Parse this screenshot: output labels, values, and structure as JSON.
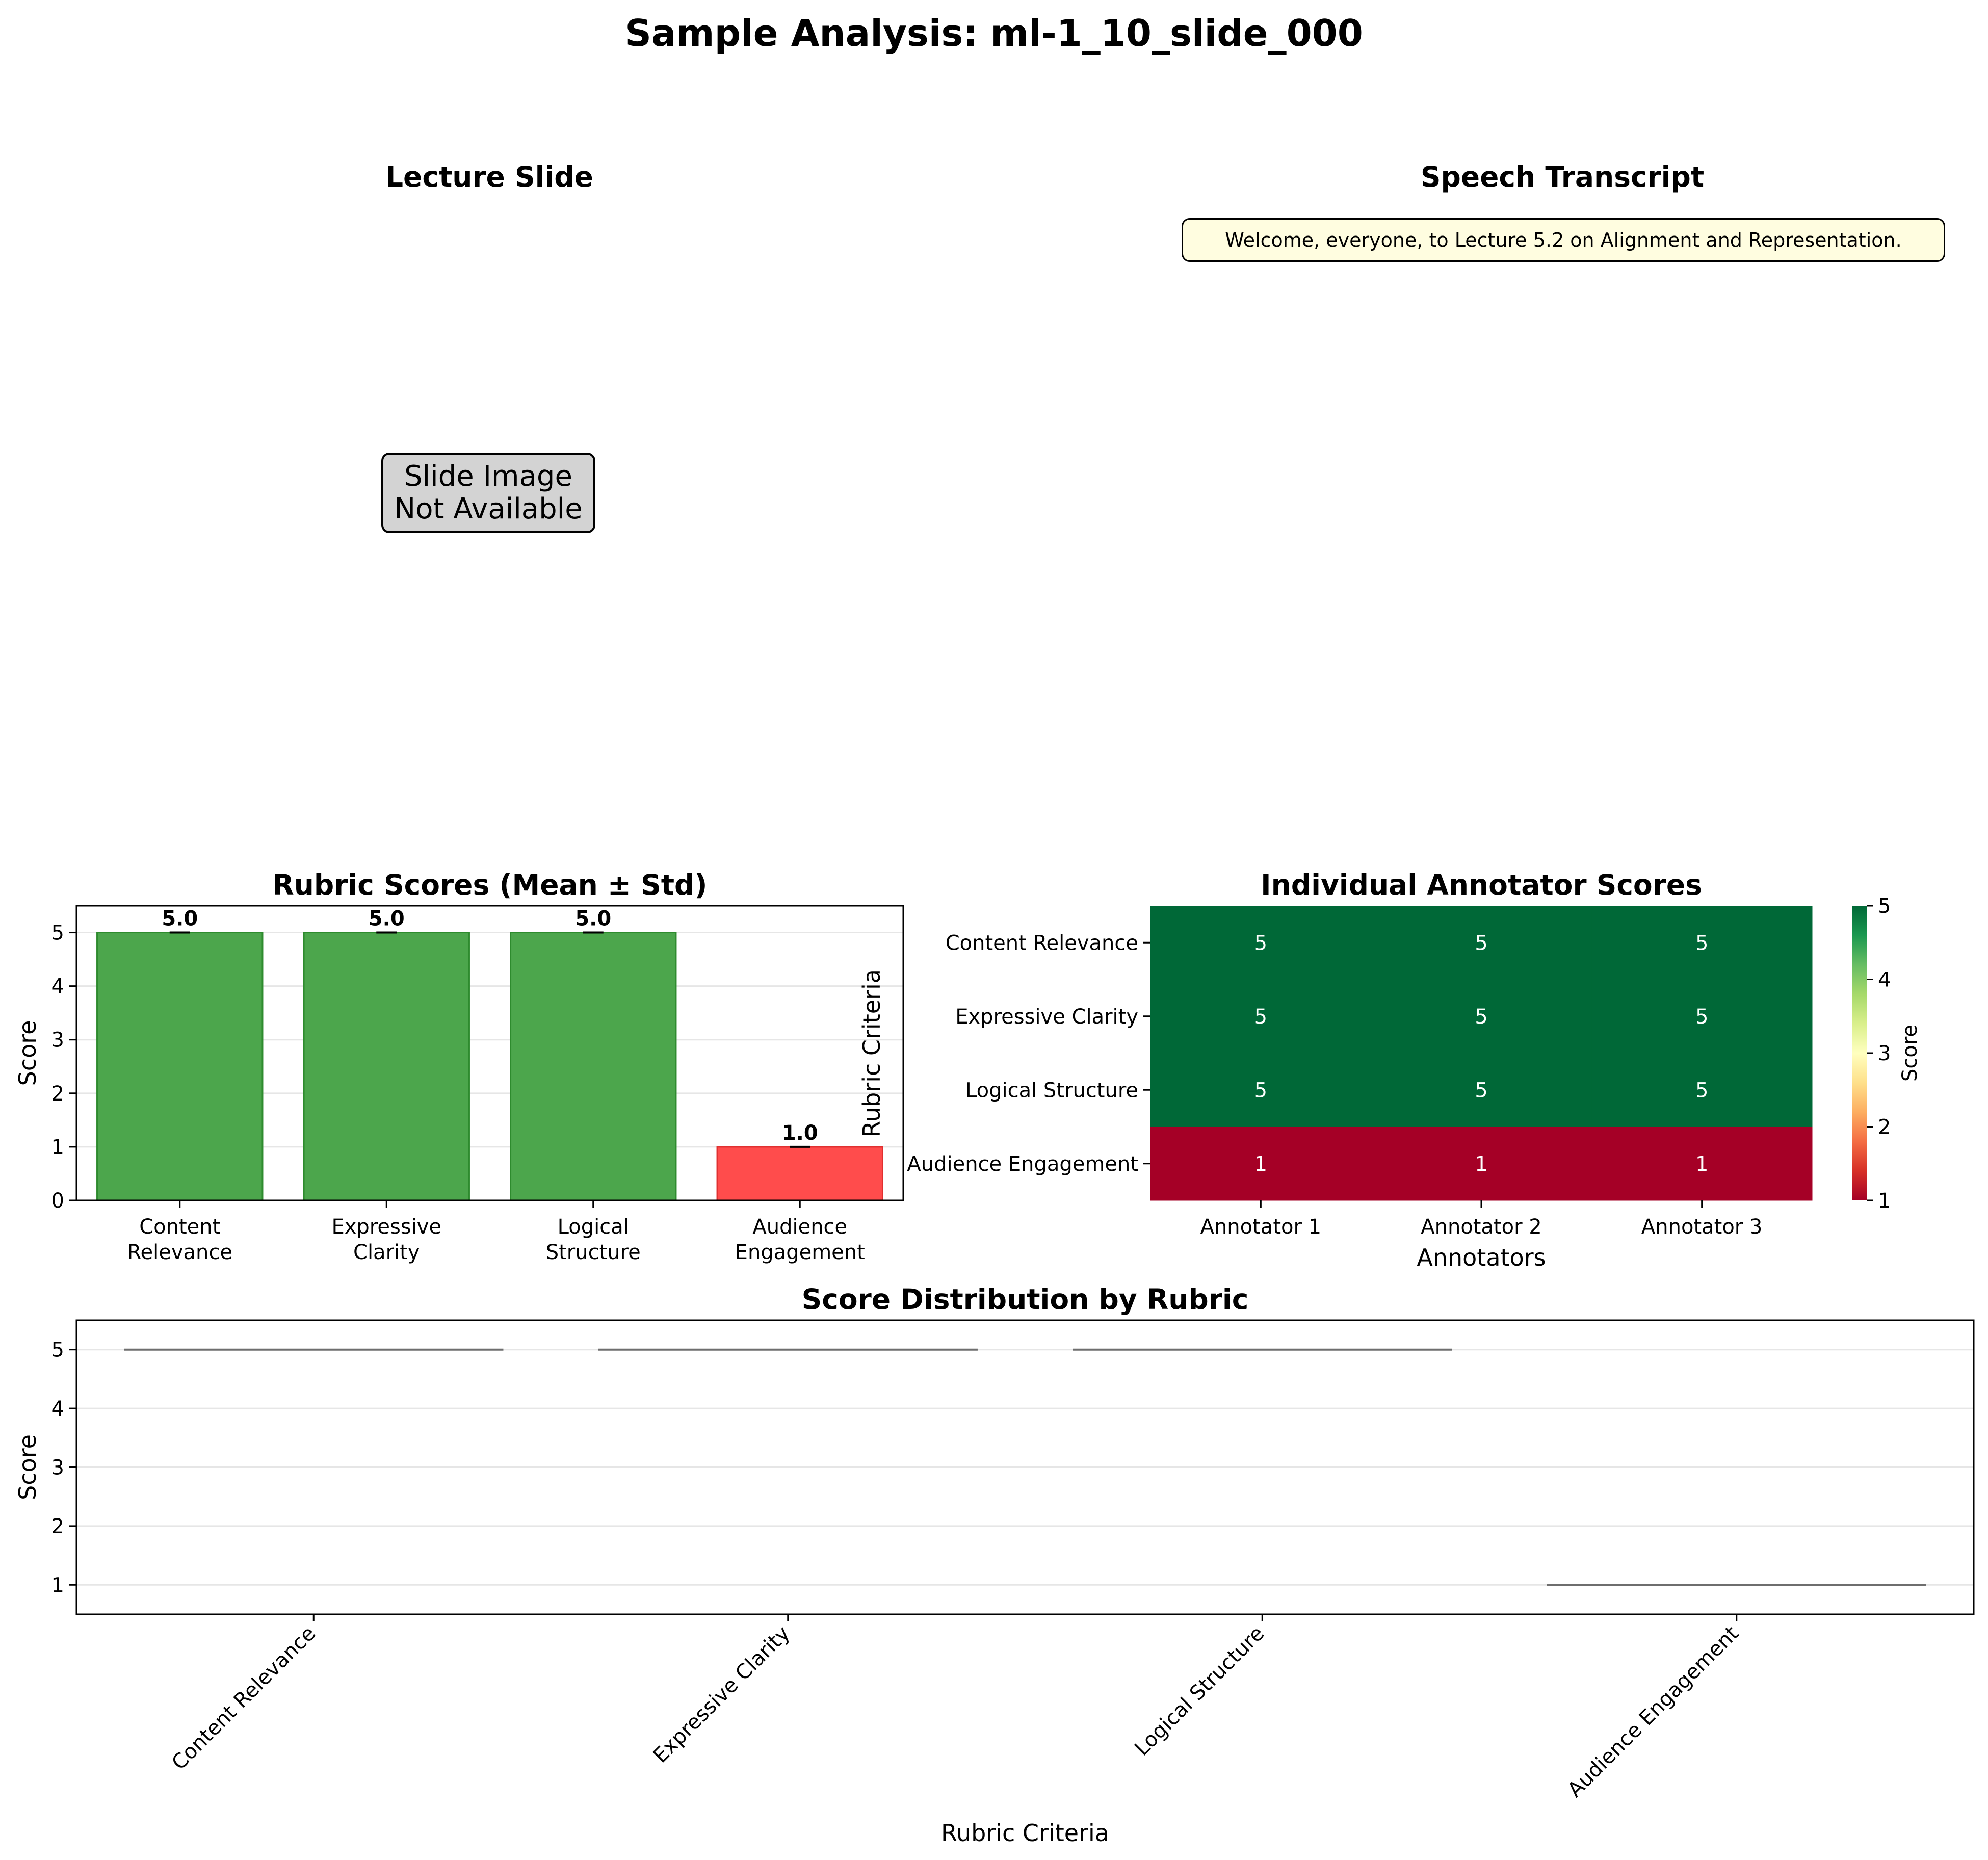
{
  "suptitle": "Sample Analysis: ml-1_10_slide_000",
  "slide_panel": {
    "title": "Lecture Slide",
    "placeholder_line1": "Slide Image",
    "placeholder_line2": "Not Available"
  },
  "transcript_panel": {
    "title": "Speech Transcript",
    "text": "Welcome, everyone, to Lecture 5.2 on Alignment and Representation."
  },
  "colors": {
    "high": "#4ca64c",
    "high_edge": "#2e8b2e",
    "low": "#ff4c4c",
    "low_edge": "#e03030",
    "heat_high": "#006837",
    "heat_low": "#a50026",
    "grid": "#e6e6e6",
    "box_line": "#6e6e6e"
  },
  "chart_data": [
    {
      "type": "bar",
      "title": "Rubric Scores (Mean ± Std)",
      "categories": [
        [
          "Content",
          "Relevance"
        ],
        [
          "Expressive",
          "Clarity"
        ],
        [
          "Logical",
          "Structure"
        ],
        [
          "Audience",
          "Engagement"
        ]
      ],
      "values": [
        5.0,
        5.0,
        5.0,
        1.0
      ],
      "std": [
        0,
        0,
        0,
        0
      ],
      "value_labels": [
        "5.0",
        "5.0",
        "5.0",
        "1.0"
      ],
      "xlabel": "",
      "ylabel": "Score",
      "ylim": [
        0,
        5.5
      ],
      "yticks": [
        0,
        1,
        2,
        3,
        4,
        5
      ],
      "grid": true
    },
    {
      "type": "heatmap",
      "title": "Individual Annotator Scores",
      "rows": [
        "Content Relevance",
        "Expressive Clarity",
        "Logical Structure",
        "Audience Engagement"
      ],
      "columns": [
        "Annotator 1",
        "Annotator 2",
        "Annotator 3"
      ],
      "values": [
        [
          5,
          5,
          5
        ],
        [
          5,
          5,
          5
        ],
        [
          5,
          5,
          5
        ],
        [
          1,
          1,
          1
        ]
      ],
      "xlabel": "Annotators",
      "ylabel": "Rubric Criteria",
      "colorbar_label": "Score",
      "colorbar_ticks": [
        1,
        2,
        3,
        4,
        5
      ],
      "vmin": 1,
      "vmax": 5
    },
    {
      "type": "box",
      "title": "Score Distribution by Rubric",
      "categories": [
        "Content Relevance",
        "Expressive Clarity",
        "Logical Structure",
        "Audience Engagement"
      ],
      "values": [
        5,
        5,
        5,
        1
      ],
      "xlabel": "Rubric Criteria",
      "ylabel": "Score",
      "ylim": [
        0.5,
        5.5
      ],
      "yticks": [
        1,
        2,
        3,
        4,
        5
      ],
      "grid": true
    }
  ]
}
